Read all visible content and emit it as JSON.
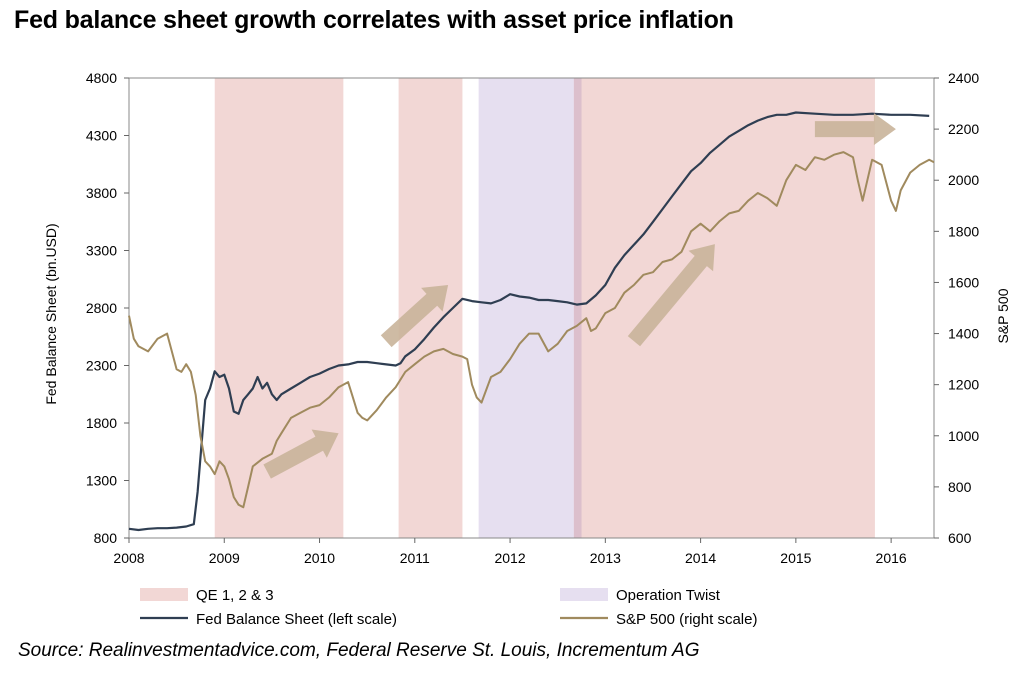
{
  "title": "Fed balance sheet growth correlates with asset price inflation",
  "source": "Source: Realinvestmentadvice.com, Federal Reserve St. Louis, Incrementum AG",
  "colors": {
    "qe": "#f2d7d5",
    "twist": "#e6dff0",
    "overlap": "#dcbfcc",
    "fed": "#2f3e52",
    "spx": "#a08a5e",
    "arrow": "#c9b49a"
  },
  "chart_data": {
    "type": "line",
    "title": "Fed balance sheet growth correlates with asset price inflation",
    "xlim": [
      2008,
      2016.45
    ],
    "x_ticks": [
      "2008",
      "2009",
      "2010",
      "2011",
      "2012",
      "2013",
      "2014",
      "2015",
      "2016"
    ],
    "y_left": {
      "label": "Fed Balance Sheet (bn.USD)",
      "ylim": [
        800,
        4800
      ],
      "ticks": [
        "4800",
        "4300",
        "3800",
        "3300",
        "2800",
        "2300",
        "1800",
        "1300",
        "800"
      ]
    },
    "y_right": {
      "label": "S&P 500",
      "ylim": [
        600,
        2400
      ],
      "ticks": [
        "2400",
        "2200",
        "2000",
        "1800",
        "1600",
        "1400",
        "1200",
        "1000",
        "800",
        "600"
      ]
    },
    "shaded_periods": [
      {
        "type": "qe",
        "start": 2008.9,
        "end": 2010.25
      },
      {
        "type": "qe",
        "start": 2010.83,
        "end": 2011.5
      },
      {
        "type": "twist",
        "start": 2011.67,
        "end": 2012.75
      },
      {
        "type": "qe",
        "start": 2012.67,
        "end": 2015.83
      }
    ],
    "legend": [
      {
        "label": "QE 1, 2 & 3",
        "kind": "patch",
        "key": "qe"
      },
      {
        "label": "Operation Twist",
        "kind": "patch",
        "key": "twist"
      },
      {
        "label": "Fed Balance Sheet (left scale)",
        "kind": "line",
        "key": "fed"
      },
      {
        "label": "S&P 500 (right scale)",
        "kind": "line",
        "key": "spx"
      }
    ],
    "series": [
      {
        "name": "Fed Balance Sheet (left scale)",
        "axis": "left",
        "x": [
          2008.0,
          2008.1,
          2008.2,
          2008.3,
          2008.4,
          2008.5,
          2008.6,
          2008.68,
          2008.72,
          2008.76,
          2008.8,
          2008.85,
          2008.9,
          2008.95,
          2009.0,
          2009.05,
          2009.1,
          2009.15,
          2009.2,
          2009.25,
          2009.3,
          2009.35,
          2009.4,
          2009.45,
          2009.5,
          2009.55,
          2009.6,
          2009.7,
          2009.8,
          2009.9,
          2010.0,
          2010.1,
          2010.2,
          2010.3,
          2010.4,
          2010.5,
          2010.6,
          2010.7,
          2010.8,
          2010.85,
          2010.9,
          2011.0,
          2011.1,
          2011.2,
          2011.3,
          2011.4,
          2011.5,
          2011.6,
          2011.7,
          2011.8,
          2011.9,
          2012.0,
          2012.1,
          2012.2,
          2012.3,
          2012.4,
          2012.5,
          2012.6,
          2012.7,
          2012.8,
          2012.9,
          2013.0,
          2013.1,
          2013.2,
          2013.3,
          2013.4,
          2013.5,
          2013.6,
          2013.7,
          2013.8,
          2013.9,
          2014.0,
          2014.1,
          2014.2,
          2014.3,
          2014.4,
          2014.5,
          2014.6,
          2014.7,
          2014.8,
          2014.9,
          2015.0,
          2015.2,
          2015.4,
          2015.6,
          2015.8,
          2016.0,
          2016.2,
          2016.4
        ],
        "values": [
          880,
          870,
          880,
          885,
          885,
          890,
          900,
          920,
          1200,
          1600,
          2000,
          2100,
          2250,
          2200,
          2220,
          2100,
          1900,
          1880,
          2000,
          2050,
          2100,
          2200,
          2100,
          2150,
          2050,
          2000,
          2050,
          2100,
          2150,
          2200,
          2230,
          2270,
          2300,
          2310,
          2330,
          2330,
          2320,
          2310,
          2300,
          2320,
          2380,
          2440,
          2530,
          2630,
          2720,
          2800,
          2880,
          2860,
          2850,
          2840,
          2870,
          2920,
          2900,
          2890,
          2870,
          2870,
          2860,
          2850,
          2830,
          2840,
          2910,
          3000,
          3150,
          3260,
          3350,
          3440,
          3550,
          3660,
          3770,
          3880,
          3990,
          4060,
          4150,
          4220,
          4290,
          4340,
          4390,
          4430,
          4460,
          4480,
          4480,
          4500,
          4490,
          4480,
          4480,
          4490,
          4480,
          4480,
          4470
        ]
      },
      {
        "name": "S&P 500 (right scale)",
        "axis": "right",
        "x": [
          2008.0,
          2008.05,
          2008.1,
          2008.2,
          2008.3,
          2008.4,
          2008.5,
          2008.55,
          2008.6,
          2008.65,
          2008.7,
          2008.75,
          2008.8,
          2008.85,
          2008.9,
          2008.95,
          2009.0,
          2009.05,
          2009.1,
          2009.15,
          2009.2,
          2009.25,
          2009.3,
          2009.4,
          2009.5,
          2009.55,
          2009.6,
          2009.7,
          2009.8,
          2009.9,
          2010.0,
          2010.1,
          2010.2,
          2010.3,
          2010.35,
          2010.4,
          2010.45,
          2010.5,
          2010.6,
          2010.7,
          2010.8,
          2010.9,
          2011.0,
          2011.1,
          2011.2,
          2011.3,
          2011.4,
          2011.5,
          2011.55,
          2011.6,
          2011.65,
          2011.7,
          2011.8,
          2011.9,
          2012.0,
          2012.1,
          2012.2,
          2012.3,
          2012.4,
          2012.5,
          2012.6,
          2012.7,
          2012.8,
          2012.85,
          2012.9,
          2013.0,
          2013.1,
          2013.2,
          2013.3,
          2013.4,
          2013.5,
          2013.6,
          2013.7,
          2013.8,
          2013.9,
          2014.0,
          2014.1,
          2014.2,
          2014.3,
          2014.4,
          2014.5,
          2014.6,
          2014.7,
          2014.8,
          2014.9,
          2015.0,
          2015.1,
          2015.2,
          2015.3,
          2015.4,
          2015.5,
          2015.6,
          2015.65,
          2015.7,
          2015.8,
          2015.9,
          2016.0,
          2016.05,
          2016.1,
          2016.2,
          2016.3,
          2016.4,
          2016.45
        ],
        "values": [
          1470,
          1380,
          1350,
          1330,
          1380,
          1400,
          1260,
          1250,
          1280,
          1250,
          1160,
          1000,
          900,
          880,
          850,
          900,
          880,
          830,
          760,
          730,
          720,
          800,
          880,
          910,
          930,
          980,
          1010,
          1070,
          1090,
          1110,
          1120,
          1150,
          1190,
          1210,
          1150,
          1090,
          1070,
          1060,
          1100,
          1150,
          1190,
          1250,
          1280,
          1310,
          1330,
          1340,
          1320,
          1310,
          1300,
          1200,
          1150,
          1130,
          1230,
          1250,
          1300,
          1360,
          1400,
          1400,
          1330,
          1360,
          1410,
          1430,
          1460,
          1410,
          1420,
          1480,
          1500,
          1560,
          1590,
          1630,
          1640,
          1680,
          1690,
          1720,
          1800,
          1830,
          1800,
          1840,
          1870,
          1880,
          1920,
          1950,
          1930,
          1900,
          2000,
          2060,
          2040,
          2090,
          2080,
          2100,
          2110,
          2090,
          2000,
          1920,
          2080,
          2060,
          1920,
          1880,
          1960,
          2030,
          2060,
          2080,
          2070
        ]
      }
    ],
    "annotations": [
      {
        "kind": "arrow",
        "from": [
          2009.45,
          860
        ],
        "to": [
          2010.2,
          1010
        ],
        "axis": "right"
      },
      {
        "kind": "arrow",
        "from": [
          2010.7,
          1370
        ],
        "to": [
          2011.35,
          1590
        ],
        "axis": "right"
      },
      {
        "kind": "arrow",
        "from": [
          2013.3,
          1370
        ],
        "to": [
          2014.15,
          1750
        ],
        "axis": "right"
      },
      {
        "kind": "arrow",
        "from": [
          2015.2,
          2200
        ],
        "to": [
          2016.05,
          2200
        ],
        "axis": "right"
      }
    ]
  }
}
